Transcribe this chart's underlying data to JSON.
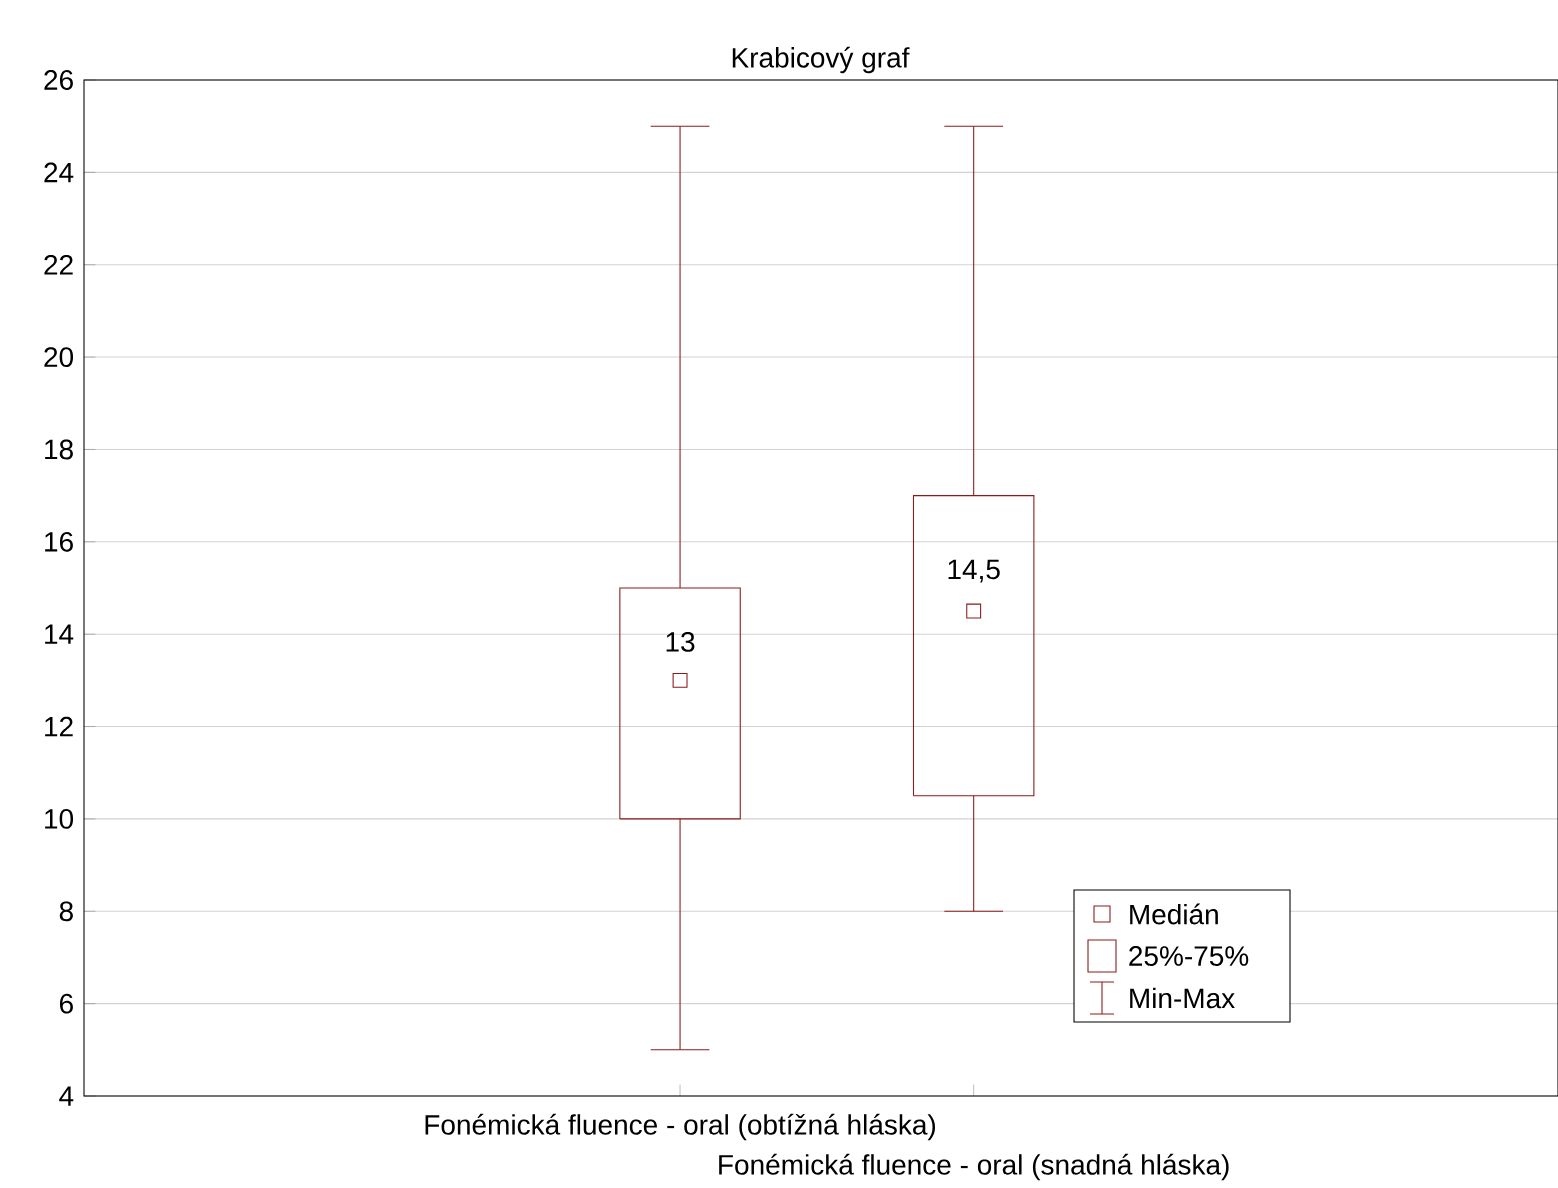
{
  "chart_data": {
    "type": "box",
    "title": "Krabicový graf",
    "categories": [
      "Fonémická fluence - oral (obtížná hláska)",
      "Fonémická fluence - oral (snadná hláska)"
    ],
    "boxes": [
      {
        "low": 5,
        "q1": 10,
        "median": 13,
        "q3": 15,
        "high": 25
      },
      {
        "low": 8,
        "q1": 10.5,
        "median": 14.5,
        "q3": 17,
        "high": 25
      }
    ],
    "color": "#8b1a1a",
    "marker": "square",
    "ylim": [
      4,
      26
    ],
    "yticks": [
      4,
      6,
      8,
      10,
      12,
      14,
      16,
      18,
      20,
      22,
      24,
      26
    ],
    "grid": "y",
    "annotations": [
      "13",
      "14,5",
      "Medián",
      "25%-75%",
      "Min-Max"
    ]
  }
}
